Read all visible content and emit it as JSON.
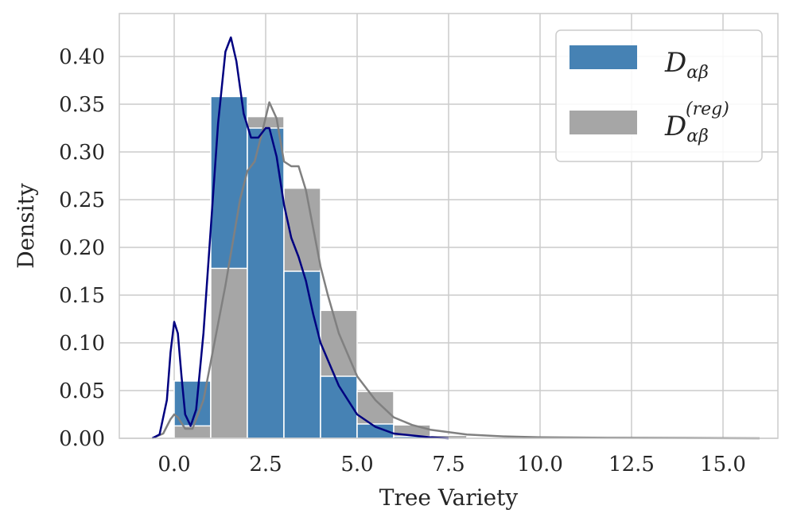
{
  "chart_data": {
    "type": "bar",
    "xlabel": "Tree Variety",
    "ylabel": "Density",
    "xlim": [
      -1.5,
      16.5
    ],
    "ylim": [
      0,
      0.445
    ],
    "grid": true,
    "legend_position": "top-right",
    "x_ticks": [
      0.0,
      2.5,
      5.0,
      7.5,
      10.0,
      12.5,
      15.0
    ],
    "x_tick_labels": [
      "0.0",
      "2.5",
      "5.0",
      "7.5",
      "10.0",
      "12.5",
      "15.0"
    ],
    "y_ticks": [
      0.0,
      0.05,
      0.1,
      0.15,
      0.2,
      0.25,
      0.3,
      0.35,
      0.4
    ],
    "y_tick_labels": [
      "0.00",
      "0.05",
      "0.10",
      "0.15",
      "0.20",
      "0.25",
      "0.30",
      "0.35",
      "0.40"
    ],
    "series": [
      {
        "name_main": "D",
        "name_sub": "αβ",
        "name_sup": "",
        "color": "#4682b4",
        "kde_color": "#000080",
        "bins": [
          {
            "x0": 0,
            "x1": 1,
            "value": 0.06
          },
          {
            "x0": 1,
            "x1": 2,
            "value": 0.358
          },
          {
            "x0": 2,
            "x1": 3,
            "value": 0.325
          },
          {
            "x0": 3,
            "x1": 4,
            "value": 0.175
          },
          {
            "x0": 4,
            "x1": 5,
            "value": 0.065
          },
          {
            "x0": 5,
            "x1": 6,
            "value": 0.015
          },
          {
            "x0": 6,
            "x1": 7,
            "value": 0.002
          }
        ],
        "kde": [
          [
            -0.6,
            0.0
          ],
          [
            -0.4,
            0.004
          ],
          [
            -0.2,
            0.04
          ],
          [
            -0.1,
            0.09
          ],
          [
            0.0,
            0.122
          ],
          [
            0.1,
            0.11
          ],
          [
            0.2,
            0.065
          ],
          [
            0.3,
            0.025
          ],
          [
            0.45,
            0.013
          ],
          [
            0.6,
            0.03
          ],
          [
            0.8,
            0.11
          ],
          [
            1.0,
            0.22
          ],
          [
            1.2,
            0.33
          ],
          [
            1.4,
            0.405
          ],
          [
            1.55,
            0.42
          ],
          [
            1.7,
            0.395
          ],
          [
            1.9,
            0.34
          ],
          [
            2.1,
            0.315
          ],
          [
            2.3,
            0.315
          ],
          [
            2.5,
            0.325
          ],
          [
            2.6,
            0.325
          ],
          [
            2.8,
            0.295
          ],
          [
            3.0,
            0.245
          ],
          [
            3.2,
            0.21
          ],
          [
            3.4,
            0.19
          ],
          [
            3.6,
            0.165
          ],
          [
            3.8,
            0.13
          ],
          [
            4.0,
            0.1
          ],
          [
            4.2,
            0.082
          ],
          [
            4.5,
            0.055
          ],
          [
            5.0,
            0.025
          ],
          [
            5.5,
            0.012
          ],
          [
            6.0,
            0.005
          ],
          [
            7.0,
            0.001
          ],
          [
            7.5,
            0.0
          ]
        ]
      },
      {
        "name_main": "D",
        "name_sub": "αβ",
        "name_sup": "(reg)",
        "color": "#a6a6a6",
        "kde_color": "#808080",
        "bins": [
          {
            "x0": 0,
            "x1": 1,
            "value": 0.013
          },
          {
            "x0": 1,
            "x1": 2,
            "value": 0.178
          },
          {
            "x0": 2,
            "x1": 3,
            "value": 0.337
          },
          {
            "x0": 3,
            "x1": 4,
            "value": 0.262
          },
          {
            "x0": 4,
            "x1": 5,
            "value": 0.134
          },
          {
            "x0": 5,
            "x1": 6,
            "value": 0.049
          },
          {
            "x0": 6,
            "x1": 7,
            "value": 0.014
          },
          {
            "x0": 7,
            "x1": 8,
            "value": 0.003
          },
          {
            "x0": 8,
            "x1": 9,
            "value": 0.001
          }
        ],
        "kde": [
          [
            -0.6,
            0.0
          ],
          [
            -0.3,
            0.005
          ],
          [
            -0.1,
            0.02
          ],
          [
            0.0,
            0.025
          ],
          [
            0.1,
            0.022
          ],
          [
            0.3,
            0.01
          ],
          [
            0.5,
            0.01
          ],
          [
            0.8,
            0.04
          ],
          [
            1.0,
            0.08
          ],
          [
            1.2,
            0.12
          ],
          [
            1.4,
            0.16
          ],
          [
            1.6,
            0.205
          ],
          [
            1.8,
            0.25
          ],
          [
            2.0,
            0.28
          ],
          [
            2.2,
            0.29
          ],
          [
            2.4,
            0.32
          ],
          [
            2.6,
            0.352
          ],
          [
            2.8,
            0.335
          ],
          [
            3.0,
            0.29
          ],
          [
            3.2,
            0.285
          ],
          [
            3.4,
            0.285
          ],
          [
            3.6,
            0.26
          ],
          [
            3.8,
            0.22
          ],
          [
            4.0,
            0.18
          ],
          [
            4.2,
            0.15
          ],
          [
            4.5,
            0.11
          ],
          [
            5.0,
            0.065
          ],
          [
            5.5,
            0.04
          ],
          [
            6.0,
            0.022
          ],
          [
            6.5,
            0.014
          ],
          [
            7.0,
            0.009
          ],
          [
            8.0,
            0.004
          ],
          [
            9.0,
            0.002
          ],
          [
            10.0,
            0.001
          ],
          [
            12.0,
            0.0005
          ],
          [
            14.0,
            0.0003
          ],
          [
            16.0,
            0.0
          ]
        ]
      }
    ]
  }
}
